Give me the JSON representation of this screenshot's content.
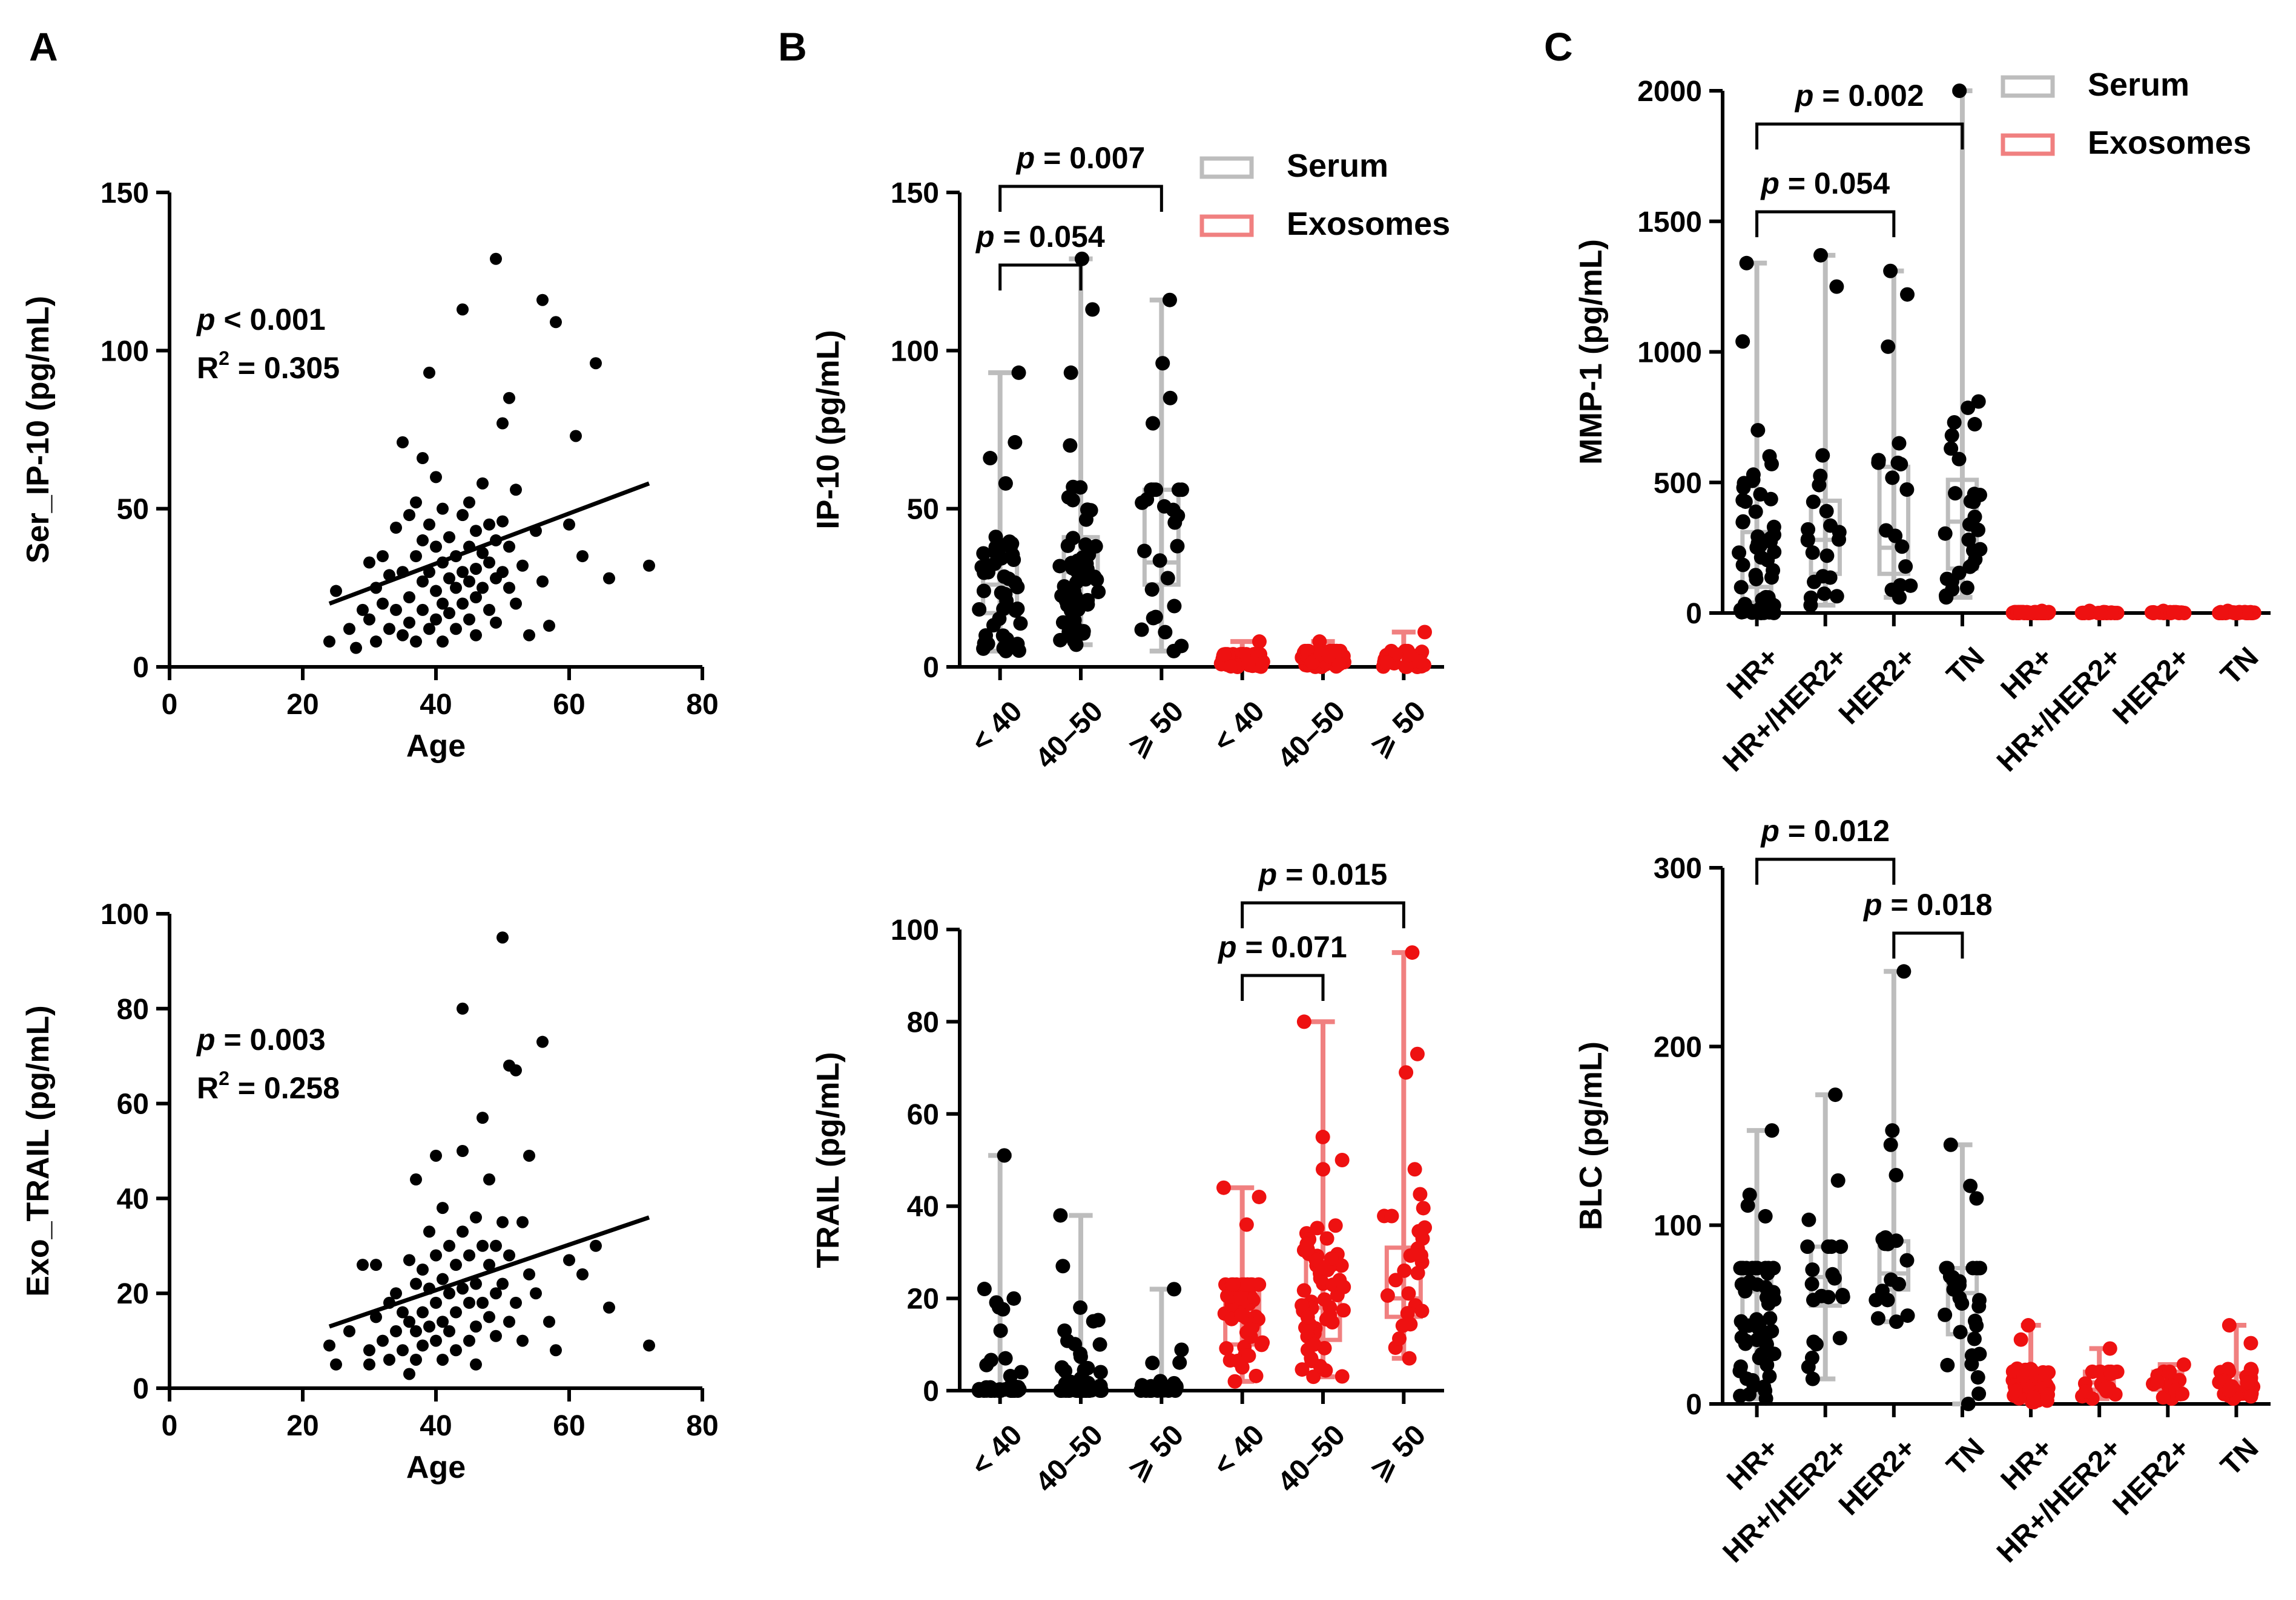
{
  "panel_labels": [
    "A",
    "B",
    "C"
  ],
  "colors": {
    "serum": "#000000",
    "serum_box": "#bdbdbd",
    "exo": "#ee1111",
    "exo_box": "#f08080"
  },
  "legend": {
    "serum": "Serum",
    "exosomes": "Exosomes"
  },
  "chart_data": [
    {
      "id": "A_top",
      "type": "scatter",
      "panel": "A",
      "xlabel": "Age",
      "ylabel": "Ser_IP-10 (pg/mL)",
      "xlim": [
        0,
        80
      ],
      "ylim": [
        0,
        150
      ],
      "xticks": [
        "0",
        "20",
        "40",
        "60",
        "80"
      ],
      "yticks": [
        "0",
        "50",
        "100",
        "150"
      ],
      "stat_p": " < 0.001",
      "stat_r2": "R",
      "stat_r2_sup": "2",
      "stat_r2_val": " = 0.305",
      "fit": {
        "x": [
          24,
          72
        ],
        "y": [
          20,
          58
        ]
      },
      "points": [
        [
          24,
          8
        ],
        [
          25,
          24
        ],
        [
          27,
          12
        ],
        [
          28,
          6
        ],
        [
          29,
          18
        ],
        [
          30,
          33
        ],
        [
          30,
          15
        ],
        [
          31,
          25
        ],
        [
          31,
          8
        ],
        [
          32,
          35
        ],
        [
          32,
          20
        ],
        [
          33,
          12
        ],
        [
          33,
          29
        ],
        [
          34,
          44
        ],
        [
          34,
          18
        ],
        [
          35,
          71
        ],
        [
          35,
          30
        ],
        [
          35,
          10
        ],
        [
          36,
          48
        ],
        [
          36,
          22
        ],
        [
          36,
          14
        ],
        [
          37,
          52
        ],
        [
          37,
          35
        ],
        [
          37,
          8
        ],
        [
          38,
          66
        ],
        [
          38,
          40
        ],
        [
          38,
          27
        ],
        [
          38,
          18
        ],
        [
          39,
          93
        ],
        [
          39,
          45
        ],
        [
          39,
          30
        ],
        [
          39,
          12
        ],
        [
          40,
          60
        ],
        [
          40,
          38
        ],
        [
          40,
          24
        ],
        [
          40,
          15
        ],
        [
          41,
          50
        ],
        [
          41,
          33
        ],
        [
          41,
          20
        ],
        [
          41,
          8
        ],
        [
          42,
          41
        ],
        [
          42,
          28
        ],
        [
          42,
          17
        ],
        [
          43,
          35
        ],
        [
          43,
          25
        ],
        [
          43,
          12
        ],
        [
          44,
          113
        ],
        [
          44,
          48
        ],
        [
          44,
          30
        ],
        [
          44,
          20
        ],
        [
          45,
          52
        ],
        [
          45,
          38
        ],
        [
          45,
          27
        ],
        [
          45,
          15
        ],
        [
          46,
          43
        ],
        [
          46,
          31
        ],
        [
          46,
          22
        ],
        [
          46,
          10
        ],
        [
          47,
          58
        ],
        [
          47,
          36
        ],
        [
          47,
          25
        ],
        [
          48,
          45
        ],
        [
          48,
          33
        ],
        [
          48,
          18
        ],
        [
          49,
          129
        ],
        [
          49,
          40
        ],
        [
          49,
          28
        ],
        [
          49,
          14
        ],
        [
          50,
          77
        ],
        [
          50,
          46
        ],
        [
          50,
          30
        ],
        [
          51,
          85
        ],
        [
          51,
          38
        ],
        [
          51,
          25
        ],
        [
          52,
          56
        ],
        [
          52,
          20
        ],
        [
          53,
          32
        ],
        [
          54,
          10
        ],
        [
          55,
          43
        ],
        [
          56,
          116
        ],
        [
          56,
          27
        ],
        [
          57,
          13
        ],
        [
          58,
          109
        ],
        [
          60,
          45
        ],
        [
          61,
          73
        ],
        [
          62,
          35
        ],
        [
          64,
          96
        ],
        [
          66,
          28
        ],
        [
          72,
          32
        ]
      ]
    },
    {
      "id": "A_bottom",
      "type": "scatter",
      "panel": "A",
      "xlabel": "Age",
      "ylabel": "Exo_TRAIL (pg/mL)",
      "xlim": [
        0,
        80
      ],
      "ylim": [
        0,
        100
      ],
      "xticks": [
        "0",
        "20",
        "40",
        "60",
        "80"
      ],
      "yticks": [
        "0",
        "20",
        "40",
        "60",
        "80",
        "100"
      ],
      "stat_p": " = 0.003",
      "stat_r2": "R",
      "stat_r2_sup": "2",
      "stat_r2_val": " = 0.258",
      "fit": {
        "x": [
          24,
          72
        ],
        "y": [
          13,
          36
        ]
      },
      "points": [
        [
          24,
          9
        ],
        [
          25,
          5
        ],
        [
          27,
          12
        ],
        [
          29,
          26
        ],
        [
          30,
          8
        ],
        [
          30,
          5
        ],
        [
          31,
          15
        ],
        [
          31,
          26
        ],
        [
          32,
          10
        ],
        [
          33,
          6
        ],
        [
          33,
          18
        ],
        [
          34,
          20
        ],
        [
          34,
          12
        ],
        [
          35,
          16
        ],
        [
          35,
          8
        ],
        [
          36,
          27
        ],
        [
          36,
          14
        ],
        [
          36,
          3
        ],
        [
          37,
          44
        ],
        [
          37,
          22
        ],
        [
          37,
          12
        ],
        [
          37,
          6
        ],
        [
          38,
          25
        ],
        [
          38,
          16
        ],
        [
          38,
          9
        ],
        [
          39,
          33
        ],
        [
          39,
          21
        ],
        [
          39,
          13
        ],
        [
          40,
          49
        ],
        [
          40,
          28
        ],
        [
          40,
          18
        ],
        [
          40,
          10
        ],
        [
          41,
          38
        ],
        [
          41,
          23
        ],
        [
          41,
          14
        ],
        [
          41,
          6
        ],
        [
          42,
          30
        ],
        [
          42,
          20
        ],
        [
          42,
          12
        ],
        [
          43,
          26
        ],
        [
          43,
          16
        ],
        [
          43,
          8
        ],
        [
          44,
          80
        ],
        [
          44,
          50
        ],
        [
          44,
          33
        ],
        [
          44,
          21
        ],
        [
          45,
          28
        ],
        [
          45,
          18
        ],
        [
          45,
          10
        ],
        [
          46,
          36
        ],
        [
          46,
          22
        ],
        [
          46,
          13
        ],
        [
          46,
          5
        ],
        [
          47,
          57
        ],
        [
          47,
          30
        ],
        [
          47,
          18
        ],
        [
          48,
          44
        ],
        [
          48,
          26
        ],
        [
          48,
          15
        ],
        [
          49,
          30
        ],
        [
          49,
          20
        ],
        [
          49,
          11
        ],
        [
          50,
          95
        ],
        [
          50,
          35
        ],
        [
          50,
          22
        ],
        [
          51,
          68
        ],
        [
          51,
          28
        ],
        [
          51,
          14
        ],
        [
          52,
          67
        ],
        [
          52,
          18
        ],
        [
          53,
          35
        ],
        [
          53,
          10
        ],
        [
          54,
          49
        ],
        [
          54,
          24
        ],
        [
          55,
          20
        ],
        [
          56,
          73
        ],
        [
          57,
          14
        ],
        [
          58,
          8
        ],
        [
          60,
          27
        ],
        [
          62,
          24
        ],
        [
          64,
          30
        ],
        [
          66,
          17
        ],
        [
          72,
          9
        ]
      ]
    },
    {
      "id": "B_top",
      "type": "box-dot",
      "panel": "B",
      "ylabel": "IP-10 (pg/mL)",
      "ylim": [
        0,
        150
      ],
      "yticks": [
        "0",
        "50",
        "100",
        "150"
      ],
      "categories": [
        "< 40",
        "40–50",
        "⩾ 50",
        "< 40",
        "40–50",
        "⩾ 50"
      ],
      "groups": [
        {
          "source": "Serum",
          "n": 48,
          "min": 5,
          "q1": 17,
          "median": 26,
          "q3": 35,
          "max": 93,
          "outliers": [
            71,
            66,
            58
          ]
        },
        {
          "source": "Serum",
          "n": 58,
          "min": 7,
          "q1": 22,
          "median": 30,
          "q3": 41,
          "max": 129,
          "outliers": [
            113,
            93,
            70
          ]
        },
        {
          "source": "Serum",
          "n": 28,
          "min": 5,
          "q1": 26,
          "median": 33,
          "q3": 56,
          "max": 116,
          "outliers": [
            96,
            85,
            77
          ]
        },
        {
          "source": "Exosomes",
          "n": 48,
          "min": 0,
          "q1": 1,
          "median": 2,
          "q3": 4,
          "max": 8,
          "outliers": []
        },
        {
          "source": "Exosomes",
          "n": 58,
          "min": 0,
          "q1": 2,
          "median": 3,
          "q3": 5,
          "max": 8,
          "outliers": []
        },
        {
          "source": "Exosomes",
          "n": 28,
          "min": 0,
          "q1": 1,
          "median": 3,
          "q3": 5,
          "max": 11,
          "outliers": []
        }
      ],
      "brackets": [
        {
          "from": 0,
          "to": 1,
          "label": "p = 0.054",
          "p_word": "p",
          "rest": " = 0.054",
          "level": 0
        },
        {
          "from": 0,
          "to": 2,
          "label": "p = 0.007",
          "p_word": "p",
          "rest": " = 0.007",
          "level": 1
        }
      ]
    },
    {
      "id": "B_bottom",
      "type": "box-dot",
      "panel": "B",
      "ylabel": "TRAIL (pg/mL)",
      "ylim": [
        0,
        100
      ],
      "yticks": [
        "0",
        "20",
        "40",
        "60",
        "80",
        "100"
      ],
      "categories": [
        "< 40",
        "40–50",
        "⩾ 50",
        "< 40",
        "40–50",
        "⩾ 50"
      ],
      "groups": [
        {
          "source": "Serum",
          "n": 48,
          "min": 0,
          "q1": 0,
          "median": 0,
          "q3": 1,
          "max": 51,
          "outliers": [
            13,
            7,
            4
          ]
        },
        {
          "source": "Serum",
          "n": 58,
          "min": 0,
          "q1": 0,
          "median": 0,
          "q3": 2,
          "max": 38,
          "outliers": [
            27,
            18,
            13,
            10,
            8
          ]
        },
        {
          "source": "Serum",
          "n": 28,
          "min": 0,
          "q1": 0,
          "median": 0,
          "q3": 1,
          "max": 22,
          "outliers": [
            6
          ]
        },
        {
          "source": "Exosomes",
          "n": 48,
          "min": 2,
          "q1": 10,
          "median": 18,
          "q3": 23,
          "max": 44,
          "outliers": [
            42,
            36
          ]
        },
        {
          "source": "Exosomes",
          "n": 58,
          "min": 3,
          "q1": 11,
          "median": 18,
          "q3": 29,
          "max": 80,
          "outliers": [
            55,
            50,
            48
          ]
        },
        {
          "source": "Exosomes",
          "n": 28,
          "min": 7,
          "q1": 16,
          "median": 20,
          "q3": 31,
          "max": 95,
          "outliers": [
            73,
            69,
            48
          ]
        }
      ],
      "brackets": [
        {
          "from": 3,
          "to": 4,
          "label": "p = 0.071",
          "p_word": "p",
          "rest": " = 0.071",
          "level": 0
        },
        {
          "from": 3,
          "to": 5,
          "label": "p = 0.015",
          "p_word": "p",
          "rest": " = 0.015",
          "level": 1
        }
      ]
    },
    {
      "id": "C_top",
      "type": "box-dot",
      "panel": "C",
      "ylabel": "MMP-1 (pg/mL)",
      "ylim": [
        0,
        2000
      ],
      "yticks": [
        "0",
        "500",
        "1000",
        "1500",
        "2000"
      ],
      "categories": [
        "HR+",
        "HR+/HER2+",
        "HER2+",
        "TN",
        "HR+",
        "HR+/HER2+",
        "HER2+",
        "TN"
      ],
      "groups": [
        {
          "source": "Serum",
          "n": 60,
          "min": 0,
          "q1": 40,
          "median": 100,
          "q3": 310,
          "max": 1340,
          "outliers": [
            1040,
            700,
            600,
            530,
            510
          ]
        },
        {
          "source": "Serum",
          "n": 22,
          "min": 30,
          "q1": 150,
          "median": 280,
          "q3": 430,
          "max": 1370,
          "outliers": [
            1250,
            490
          ]
        },
        {
          "source": "Serum",
          "n": 18,
          "min": 60,
          "q1": 150,
          "median": 250,
          "q3": 560,
          "max": 1310,
          "outliers": [
            1220,
            1020,
            650
          ]
        },
        {
          "source": "Serum",
          "n": 30,
          "min": 60,
          "q1": 170,
          "median": 350,
          "q3": 510,
          "max": 2000,
          "outliers": [
            810,
            730,
            680,
            630
          ]
        },
        {
          "source": "Exosomes",
          "n": 60,
          "min": 0,
          "q1": 0,
          "median": 1,
          "q3": 3,
          "max": 8,
          "outliers": []
        },
        {
          "source": "Exosomes",
          "n": 22,
          "min": 0,
          "q1": 0,
          "median": 1,
          "q3": 3,
          "max": 8,
          "outliers": []
        },
        {
          "source": "Exosomes",
          "n": 18,
          "min": 0,
          "q1": 0,
          "median": 1,
          "q3": 3,
          "max": 8,
          "outliers": []
        },
        {
          "source": "Exosomes",
          "n": 30,
          "min": 0,
          "q1": 0,
          "median": 1,
          "q3": 3,
          "max": 8,
          "outliers": []
        }
      ],
      "brackets": [
        {
          "from": 0,
          "to": 2,
          "label": "p = 0.054",
          "p_word": "p",
          "rest": " = 0.054",
          "level": 0
        },
        {
          "from": 0,
          "to": 3,
          "label": "p = 0.002",
          "p_word": "p",
          "rest": " = 0.002",
          "level": 1
        }
      ]
    },
    {
      "id": "C_bottom",
      "type": "box-dot",
      "panel": "C",
      "ylabel": "BLC (pg/mL)",
      "ylim": [
        0,
        300
      ],
      "yticks": [
        "0",
        "100",
        "200",
        "300"
      ],
      "categories": [
        "HR+",
        "HR+/HER2+",
        "HER2+",
        "TN",
        "HR+",
        "HR+/HER2+",
        "HER2+",
        "TN"
      ],
      "groups": [
        {
          "source": "Serum",
          "n": 60,
          "min": 3,
          "q1": 33,
          "median": 63,
          "q3": 76,
          "max": 153,
          "outliers": [
            117,
            111,
            105
          ]
        },
        {
          "source": "Serum",
          "n": 22,
          "min": 14,
          "q1": 55,
          "median": 71,
          "q3": 88,
          "max": 173,
          "outliers": [
            125,
            103
          ]
        },
        {
          "source": "Serum",
          "n": 18,
          "min": 46,
          "q1": 64,
          "median": 73,
          "q3": 91,
          "max": 242,
          "outliers": [
            153,
            145,
            128
          ]
        },
        {
          "source": "Serum",
          "n": 30,
          "min": 0,
          "q1": 39,
          "median": 62,
          "q3": 76,
          "max": 145,
          "outliers": [
            122,
            115
          ]
        },
        {
          "source": "Exosomes",
          "n": 60,
          "min": 1,
          "q1": 6,
          "median": 12,
          "q3": 17,
          "max": 44,
          "outliers": [
            36
          ]
        },
        {
          "source": "Exosomes",
          "n": 22,
          "min": 3,
          "q1": 8,
          "median": 12,
          "q3": 18,
          "max": 31,
          "outliers": []
        },
        {
          "source": "Exosomes",
          "n": 18,
          "min": 3,
          "q1": 8,
          "median": 13,
          "q3": 18,
          "max": 22,
          "outliers": []
        },
        {
          "source": "Exosomes",
          "n": 30,
          "min": 3,
          "q1": 8,
          "median": 12,
          "q3": 17,
          "max": 44,
          "outliers": [
            34
          ]
        }
      ],
      "brackets": [
        {
          "from": 0,
          "to": 2,
          "label": "p = 0.012",
          "p_word": "p",
          "rest": " = 0.012",
          "level": 1
        },
        {
          "from": 2,
          "to": 3,
          "label": "p = 0.018",
          "p_word": "p",
          "rest": " = 0.018",
          "level": 0
        }
      ]
    }
  ]
}
